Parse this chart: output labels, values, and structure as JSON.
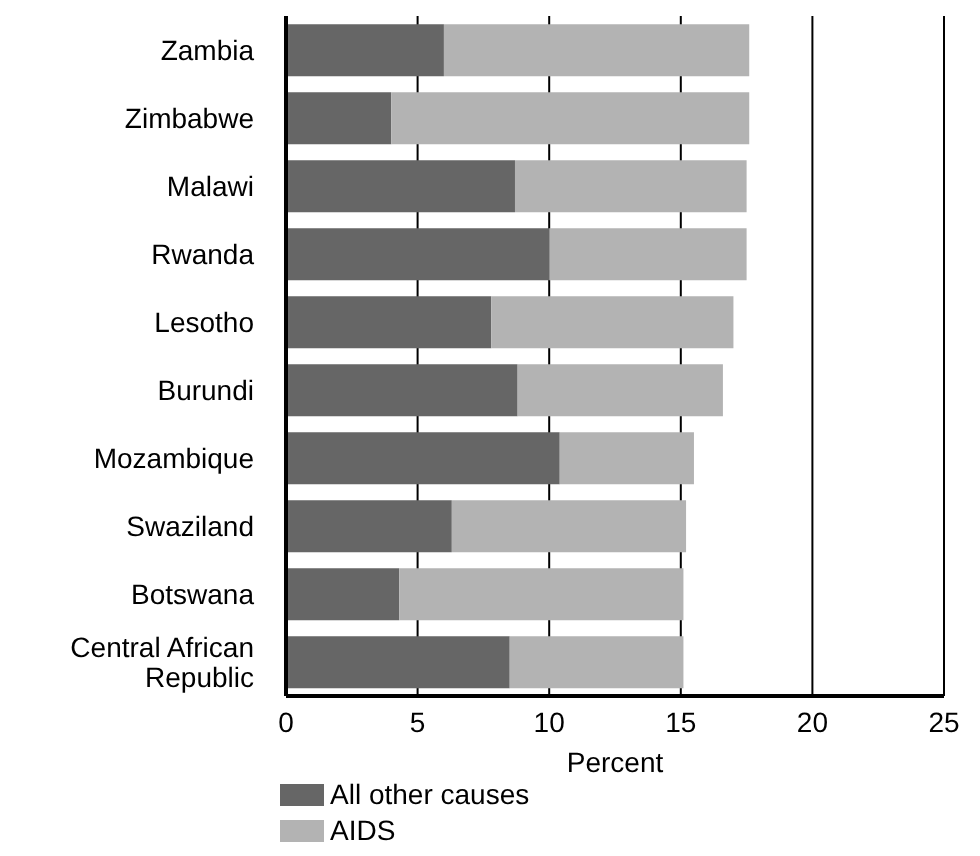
{
  "chart_data": {
    "type": "bar",
    "orientation": "horizontal",
    "stacked": true,
    "xlabel": "Percent",
    "categories": [
      "Zambia",
      "Zimbabwe",
      "Malawi",
      "Rwanda",
      "Lesotho",
      "Burundi",
      "Mozambique",
      "Swaziland",
      "Botswana",
      "Central African Republic"
    ],
    "series": [
      {
        "name": "All other causes",
        "color": "#666666",
        "values": [
          6.0,
          4.0,
          8.7,
          10.0,
          7.8,
          8.8,
          10.4,
          6.3,
          4.3,
          8.5
        ]
      },
      {
        "name": "AIDS",
        "color": "#b3b3b3",
        "values": [
          11.6,
          13.6,
          8.8,
          7.5,
          9.2,
          7.8,
          5.1,
          8.9,
          10.8,
          6.6
        ]
      }
    ],
    "xlim": [
      0,
      25
    ],
    "xticks": [
      0,
      5,
      10,
      15,
      20,
      25
    ],
    "grid": "x",
    "legend": "bottom left"
  }
}
